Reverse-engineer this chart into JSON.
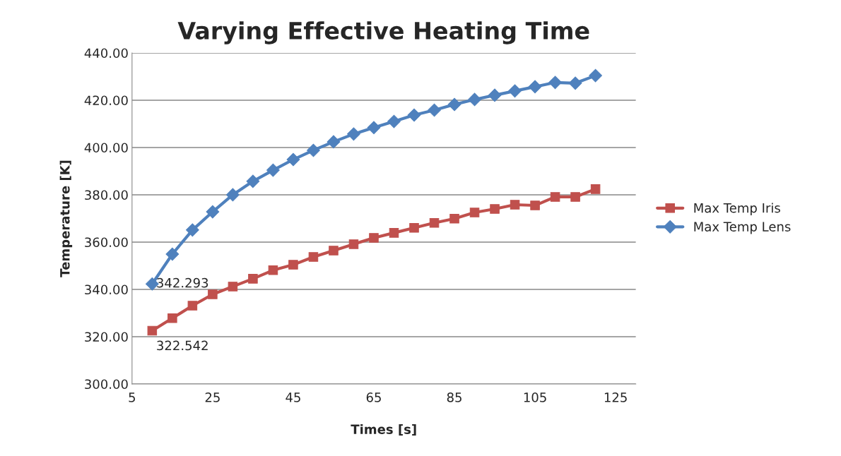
{
  "chart_data": {
    "type": "line",
    "title": "Varying Effective Heating Time",
    "xlabel": "Times [s]",
    "ylabel": "Temperature [K]",
    "x": [
      10,
      15,
      20,
      25,
      30,
      35,
      40,
      45,
      50,
      55,
      60,
      65,
      70,
      75,
      80,
      85,
      90,
      95,
      100,
      105,
      110,
      115,
      120
    ],
    "series": [
      {
        "name": "Max Temp Iris",
        "color": "#c0504d",
        "marker": "square",
        "values": [
          322.542,
          327.8,
          333.1,
          337.9,
          341.2,
          344.5,
          348.1,
          350.4,
          353.7,
          356.4,
          359.1,
          361.8,
          363.9,
          366.0,
          368.1,
          369.9,
          372.5,
          374.0,
          375.8,
          375.5,
          379.1,
          379.1,
          382.4
        ]
      },
      {
        "name": "Max Temp Lens",
        "color": "#4f81bd",
        "marker": "diamond",
        "values": [
          342.293,
          354.9,
          365.1,
          372.8,
          380.0,
          385.7,
          390.4,
          394.9,
          398.8,
          402.4,
          405.7,
          408.4,
          411.0,
          413.7,
          415.8,
          418.2,
          420.3,
          422.1,
          423.9,
          425.7,
          427.5,
          427.2,
          430.4
        ]
      }
    ],
    "annotations": [
      {
        "text": "342.293",
        "x": 10,
        "y": 342.293
      },
      {
        "text": "322.542",
        "x": 10,
        "y": 322.542
      }
    ],
    "xlim": [
      5,
      130
    ],
    "xticks": [
      5,
      25,
      45,
      65,
      85,
      105,
      125
    ],
    "ylim": [
      300,
      440
    ],
    "yticks": [
      {
        "value": 300,
        "label": "300.00"
      },
      {
        "value": 320,
        "label": "320.00"
      },
      {
        "value": 340,
        "label": "340.00"
      },
      {
        "value": 360,
        "label": "360.00"
      },
      {
        "value": 380,
        "label": "380.00"
      },
      {
        "value": 400,
        "label": "400.00"
      },
      {
        "value": 420,
        "label": "420.00"
      },
      {
        "value": 440,
        "label": "440.00"
      }
    ],
    "grid": "y",
    "legend": "right",
    "line_style": "solid"
  }
}
